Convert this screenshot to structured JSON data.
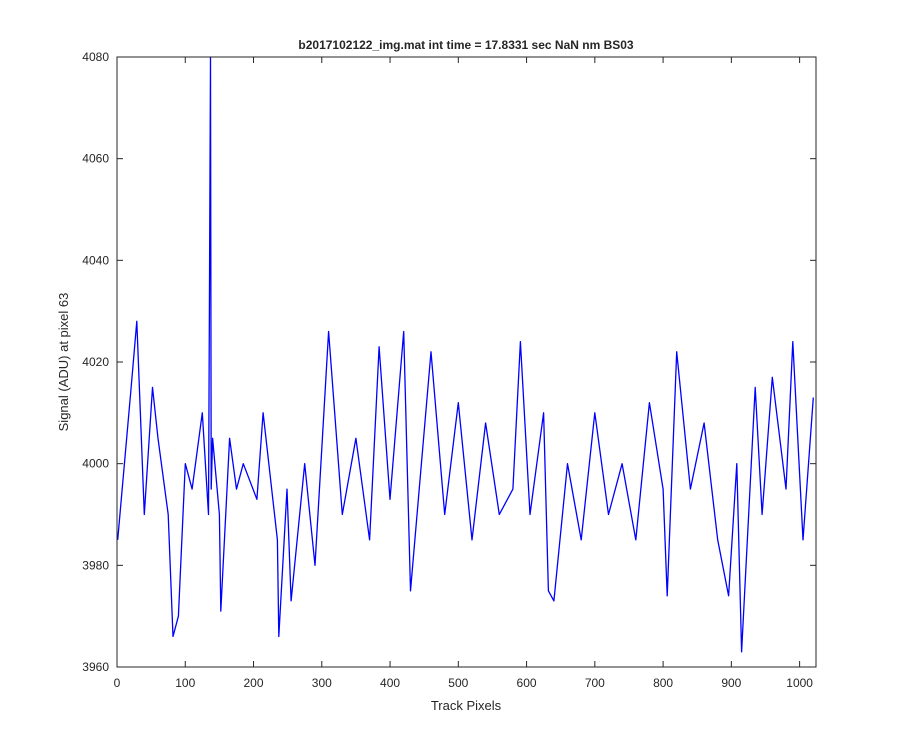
{
  "chart_data": {
    "type": "line",
    "title": "b2017102122_img.mat int time = 17.8331 sec  NaN nm BS03",
    "xlabel": "Track Pixels",
    "ylabel": "Signal (ADU) at pixel 63",
    "xlim": [
      0,
      1024
    ],
    "ylim": [
      3960,
      4080
    ],
    "xticks": [
      0,
      100,
      200,
      300,
      400,
      500,
      600,
      700,
      800,
      900,
      1000
    ],
    "yticks": [
      3960,
      3980,
      4000,
      4020,
      4040,
      4060,
      4080
    ],
    "grid": false,
    "line_color": "#0000ff",
    "series": [
      {
        "x": [
          1,
          20,
          29,
          40,
          52,
          60,
          75,
          82,
          90,
          100,
          110,
          125,
          134,
          137,
          138,
          140,
          150,
          152,
          165,
          175,
          185,
          205,
          214,
          235,
          237,
          249,
          255,
          275,
          290,
          310,
          330,
          350,
          370,
          384,
          400,
          420,
          430,
          460,
          480,
          500,
          520,
          540,
          560,
          580,
          591,
          605,
          625,
          632,
          640,
          660,
          680,
          700,
          720,
          740,
          760,
          780,
          800,
          806,
          820,
          840,
          860,
          880,
          896,
          908,
          915,
          935,
          945,
          960,
          980,
          990,
          1005,
          1020
        ],
        "y": [
          3985,
          4014,
          4028,
          3990,
          4015,
          4005,
          3990,
          3966,
          3970,
          4000,
          3995,
          4010,
          3990,
          4080,
          3995,
          4005,
          3990,
          3971,
          4005,
          3995,
          4000,
          3993,
          4010,
          3985,
          3966,
          3995,
          3973,
          4000,
          3980,
          4026,
          3990,
          4005,
          3985,
          4023,
          3993,
          4026,
          3975,
          4022,
          3990,
          4012,
          3985,
          4008,
          3990,
          3995,
          4024,
          3990,
          4010,
          3975,
          3973,
          4000,
          3985,
          4010,
          3990,
          4000,
          3985,
          4012,
          3995,
          3974,
          4022,
          3995,
          4008,
          3985,
          3974,
          4000,
          3963,
          4015,
          3990,
          4017,
          3995,
          4024,
          3985,
          4013
        ]
      }
    ]
  }
}
